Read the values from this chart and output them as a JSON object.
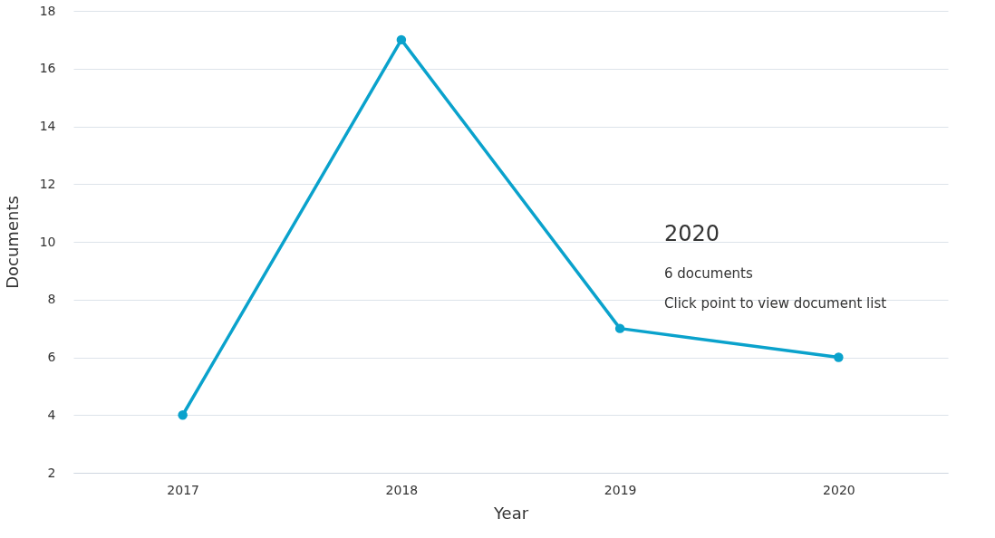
{
  "chart_data": {
    "type": "line",
    "xlabel": "Year",
    "ylabel": "Documents",
    "categories": [
      "2017",
      "2018",
      "2019",
      "2020"
    ],
    "series": [
      {
        "color": "#0aa2cc",
        "values": [
          4,
          17,
          7,
          6
        ]
      }
    ],
    "ylim": [
      2,
      18
    ],
    "yticks": [
      2,
      4,
      6,
      8,
      10,
      12,
      14,
      16,
      18
    ],
    "grid": "y",
    "legend": false,
    "marker": "circle",
    "line_style": "solid",
    "annotations": [
      "2020",
      "6 documents",
      "Click point to view document list"
    ]
  }
}
